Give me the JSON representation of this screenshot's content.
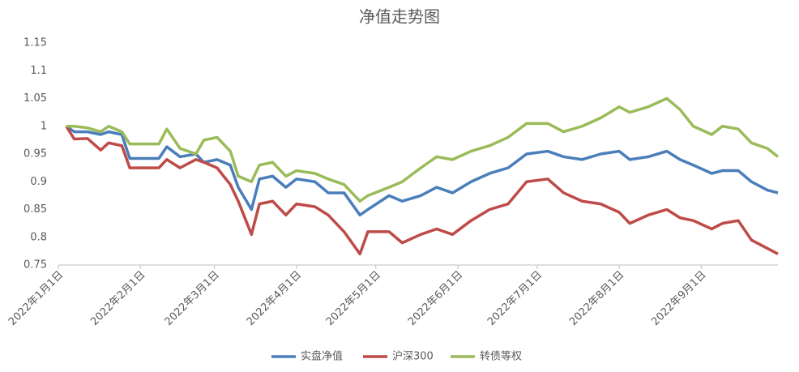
{
  "chart_data": {
    "type": "line",
    "title": "净值走势图",
    "x": [
      "2022-01-04",
      "2022-01-07",
      "2022-01-12",
      "2022-01-17",
      "2022-01-20",
      "2022-01-25",
      "2022-01-28",
      "2022-02-08",
      "2022-02-11",
      "2022-02-16",
      "2022-02-22",
      "2022-02-25",
      "2022-03-02",
      "2022-03-07",
      "2022-03-10",
      "2022-03-15",
      "2022-03-18",
      "2022-03-23",
      "2022-03-28",
      "2022-04-01",
      "2022-04-08",
      "2022-04-13",
      "2022-04-19",
      "2022-04-25",
      "2022-04-28",
      "2022-05-06",
      "2022-05-11",
      "2022-05-18",
      "2022-05-24",
      "2022-05-30",
      "2022-06-06",
      "2022-06-13",
      "2022-06-20",
      "2022-06-27",
      "2022-07-05",
      "2022-07-11",
      "2022-07-18",
      "2022-07-25",
      "2022-08-01",
      "2022-08-05",
      "2022-08-12",
      "2022-08-19",
      "2022-08-24",
      "2022-08-29",
      "2022-09-05",
      "2022-09-09",
      "2022-09-15",
      "2022-09-20",
      "2022-09-26",
      "2022-09-30"
    ],
    "series": [
      {
        "name": "实盘净值",
        "color": "#4a7ebb",
        "values": [
          1.0,
          0.99,
          0.99,
          0.985,
          0.99,
          0.985,
          0.942,
          0.942,
          0.963,
          0.945,
          0.95,
          0.935,
          0.94,
          0.93,
          0.89,
          0.85,
          0.905,
          0.91,
          0.89,
          0.905,
          0.9,
          0.88,
          0.88,
          0.84,
          0.85,
          0.875,
          0.865,
          0.875,
          0.89,
          0.88,
          0.9,
          0.915,
          0.925,
          0.95,
          0.955,
          0.945,
          0.94,
          0.95,
          0.955,
          0.94,
          0.945,
          0.955,
          0.94,
          0.93,
          0.915,
          0.92,
          0.92,
          0.9,
          0.885,
          0.88
        ]
      },
      {
        "name": "沪深300",
        "color": "#be4b48",
        "values": [
          1.0,
          0.977,
          0.978,
          0.957,
          0.97,
          0.965,
          0.925,
          0.925,
          0.94,
          0.925,
          0.94,
          0.935,
          0.925,
          0.895,
          0.865,
          0.805,
          0.86,
          0.865,
          0.84,
          0.86,
          0.855,
          0.84,
          0.81,
          0.77,
          0.81,
          0.81,
          0.79,
          0.805,
          0.815,
          0.805,
          0.83,
          0.85,
          0.86,
          0.9,
          0.905,
          0.88,
          0.865,
          0.86,
          0.845,
          0.825,
          0.84,
          0.85,
          0.835,
          0.83,
          0.815,
          0.825,
          0.83,
          0.795,
          0.78,
          0.77
        ]
      },
      {
        "name": "转债等权",
        "color": "#9bbb59",
        "values": [
          1.0,
          1.0,
          0.997,
          0.99,
          1.0,
          0.99,
          0.968,
          0.968,
          0.995,
          0.96,
          0.95,
          0.975,
          0.98,
          0.955,
          0.91,
          0.9,
          0.93,
          0.935,
          0.91,
          0.92,
          0.915,
          0.905,
          0.895,
          0.865,
          0.875,
          0.89,
          0.9,
          0.925,
          0.945,
          0.94,
          0.955,
          0.965,
          0.98,
          1.005,
          1.005,
          0.99,
          1.0,
          1.015,
          1.035,
          1.025,
          1.035,
          1.05,
          1.03,
          1.0,
          0.985,
          1.0,
          0.995,
          0.97,
          0.96,
          0.945
        ]
      }
    ],
    "xlim": [
      "2022-01-01",
      "2022-09-30"
    ],
    "xticks": [
      {
        "value": "2022-01-01",
        "label": "2022年1月1日"
      },
      {
        "value": "2022-02-01",
        "label": "2022年2月1日"
      },
      {
        "value": "2022-03-01",
        "label": "2022年3月1日"
      },
      {
        "value": "2022-04-01",
        "label": "2022年4月1日"
      },
      {
        "value": "2022-05-01",
        "label": "2022年5月1日"
      },
      {
        "value": "2022-06-01",
        "label": "2022年6月1日"
      },
      {
        "value": "2022-07-01",
        "label": "2022年7月1日"
      },
      {
        "value": "2022-08-01",
        "label": "2022年8月1日"
      },
      {
        "value": "2022-09-01",
        "label": "2022年9月1日"
      }
    ],
    "ylim": [
      0.75,
      1.15
    ],
    "yticks": [
      0.75,
      0.8,
      0.85,
      0.9,
      0.95,
      1,
      1.05,
      1.1,
      1.15
    ],
    "grid": false,
    "legend": "bottom"
  }
}
